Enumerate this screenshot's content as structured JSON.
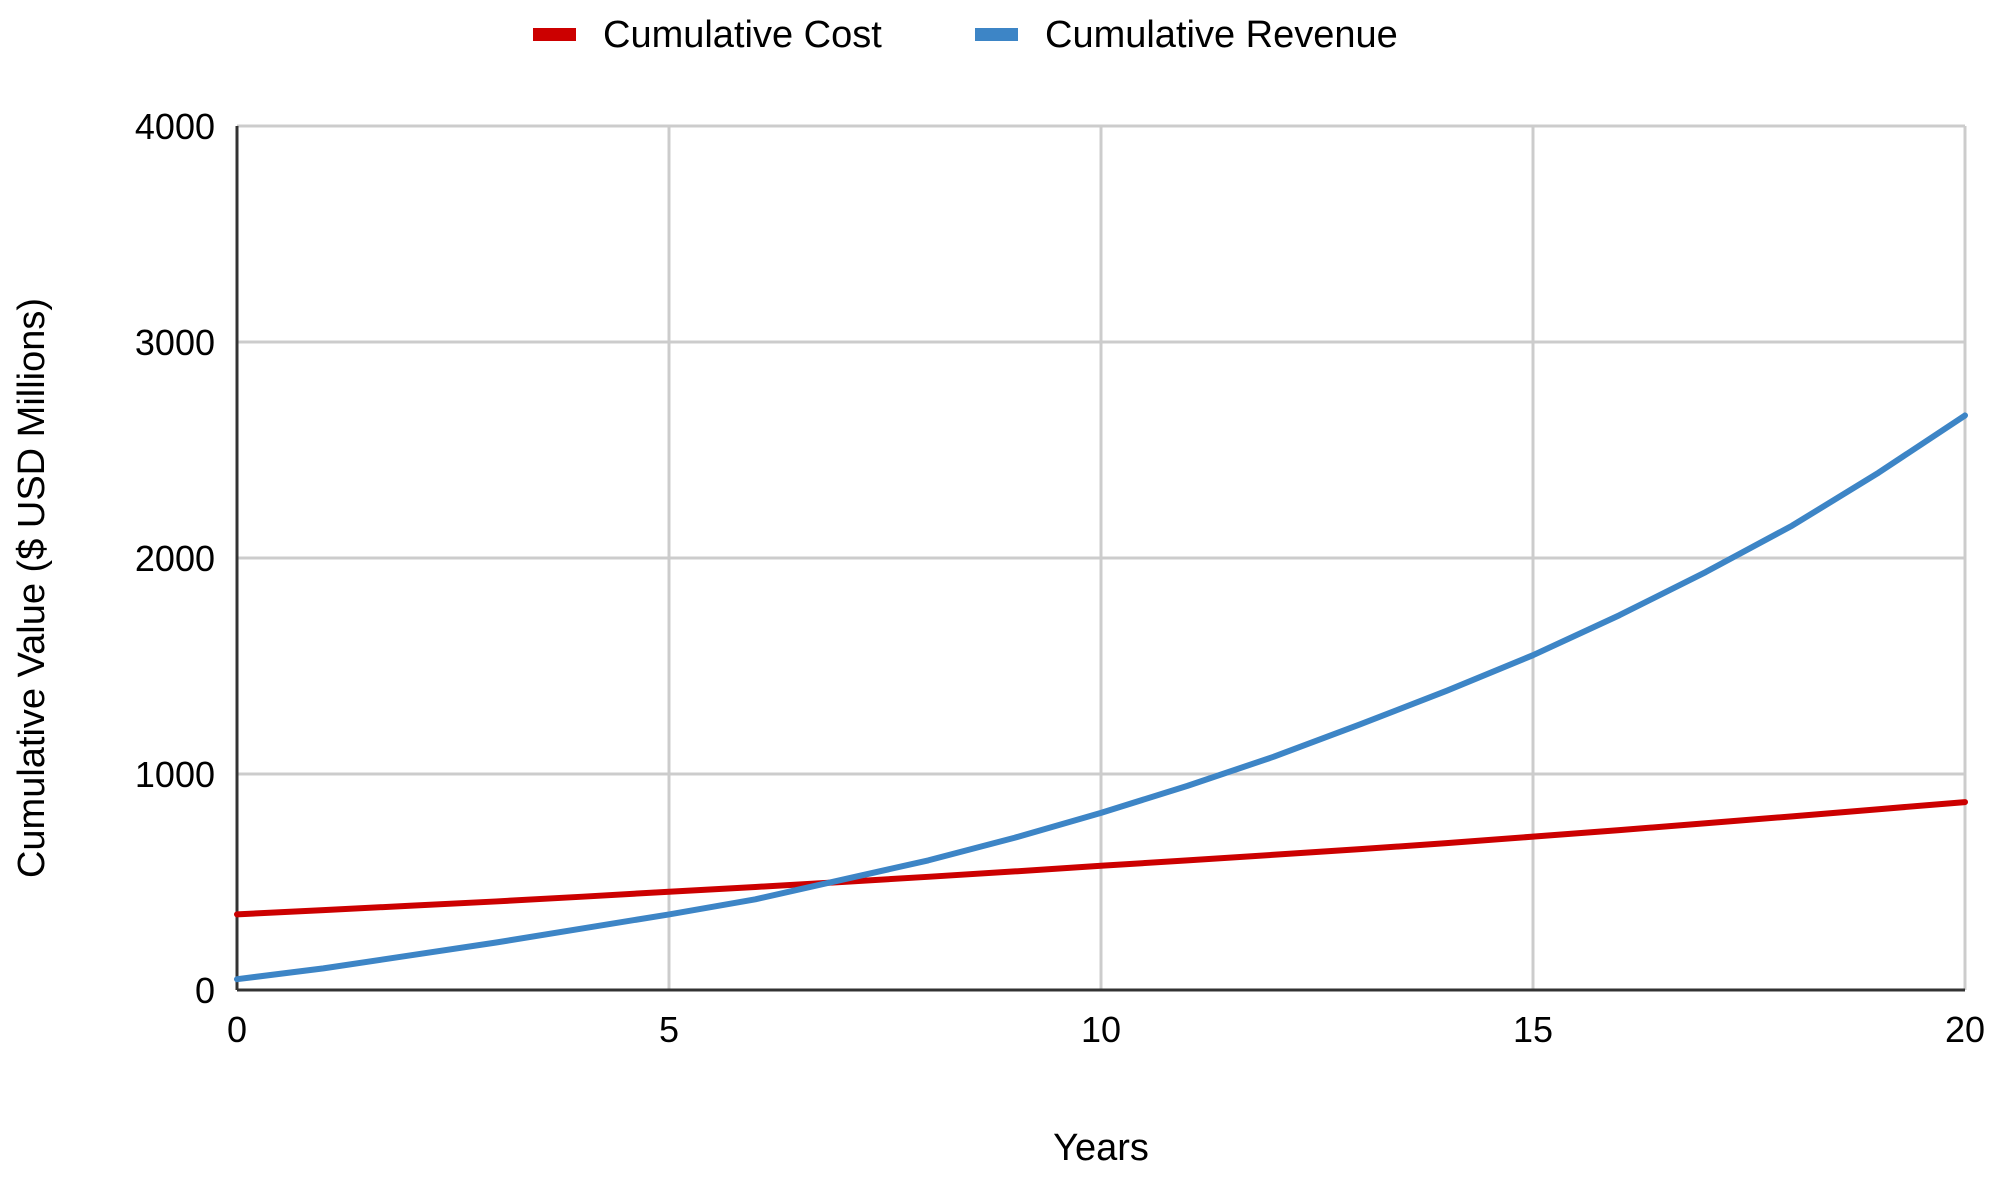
{
  "chart_data": {
    "type": "line",
    "title": "",
    "xlabel": "Years",
    "ylabel": "Cumulative Value ($ USD Millions)",
    "xlim": [
      0,
      20
    ],
    "ylim": [
      0,
      4000
    ],
    "x_ticks": [
      0,
      5,
      10,
      15,
      20
    ],
    "y_ticks": [
      0,
      1000,
      2000,
      3000,
      4000
    ],
    "grid": true,
    "legend_position": "top-center",
    "x": [
      0,
      1,
      2,
      3,
      4,
      5,
      6,
      7,
      8,
      9,
      10,
      11,
      12,
      13,
      14,
      15,
      16,
      17,
      18,
      19,
      20
    ],
    "series": [
      {
        "name": "Cumulative Cost",
        "color": "#cc0000",
        "values": [
          350,
          370,
          390,
          410,
          432,
          455,
          477,
          500,
          524,
          549,
          575,
          600,
          626,
          652,
          680,
          710,
          740,
          772,
          804,
          837,
          870
        ]
      },
      {
        "name": "Cumulative Revenue",
        "color": "#3d85c6",
        "values": [
          50,
          100,
          160,
          220,
          285,
          350,
          420,
          510,
          600,
          705,
          820,
          945,
          1080,
          1230,
          1385,
          1550,
          1735,
          1935,
          2150,
          2395,
          2660
        ]
      }
    ]
  }
}
